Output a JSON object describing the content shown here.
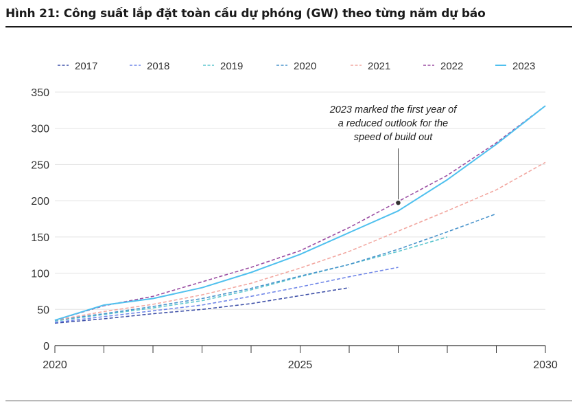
{
  "figure_title": "Hình 21: Công suất lắp đặt toàn cầu dự phóng (GW) theo từng năm dự báo",
  "chart_data": {
    "type": "line",
    "xlim": [
      2020,
      2030
    ],
    "ylim": [
      0,
      350
    ],
    "x_ticks": [
      2020,
      2025,
      2030
    ],
    "y_ticks": [
      0,
      50,
      100,
      150,
      200,
      250,
      300,
      350
    ],
    "grid": "horizontal",
    "legend_position": "top",
    "series": [
      {
        "name": "2017",
        "color": "#3f51a8",
        "dashed": true,
        "x": [
          2020,
          2021,
          2022,
          2023,
          2024,
          2025,
          2026
        ],
        "y": [
          31,
          37,
          44,
          50,
          58,
          69,
          80
        ]
      },
      {
        "name": "2018",
        "color": "#6f86e8",
        "dashed": true,
        "x": [
          2020,
          2021,
          2022,
          2023,
          2024,
          2025,
          2026,
          2027
        ],
        "y": [
          32,
          40,
          48,
          56,
          68,
          81,
          95,
          108
        ]
      },
      {
        "name": "2019",
        "color": "#5ec6cf",
        "dashed": true,
        "x": [
          2020,
          2021,
          2022,
          2023,
          2024,
          2025,
          2026,
          2027,
          2028
        ],
        "y": [
          34,
          43,
          52,
          62,
          77,
          95,
          112,
          130,
          150
        ]
      },
      {
        "name": "2020",
        "color": "#4a94cc",
        "dashed": true,
        "x": [
          2020,
          2021,
          2022,
          2023,
          2024,
          2025,
          2026,
          2027,
          2028,
          2029
        ],
        "y": [
          35,
          44,
          54,
          65,
          79,
          96,
          112,
          133,
          157,
          182
        ]
      },
      {
        "name": "2021",
        "color": "#f2a7a0",
        "dashed": true,
        "x": [
          2020,
          2021,
          2022,
          2023,
          2024,
          2025,
          2026,
          2027,
          2028,
          2029,
          2030
        ],
        "y": [
          35,
          47,
          57,
          70,
          86,
          107,
          130,
          158,
          186,
          215,
          253
        ]
      },
      {
        "name": "2022",
        "color": "#9b4fa3",
        "dashed": true,
        "x": [
          2020,
          2021,
          2022,
          2023,
          2024,
          2025,
          2026,
          2027,
          2028,
          2029,
          2030
        ],
        "y": [
          35,
          55,
          68,
          88,
          108,
          131,
          163,
          199,
          235,
          280,
          331
        ]
      },
      {
        "name": "2023",
        "color": "#4fc0ee",
        "dashed": false,
        "x": [
          2020,
          2021,
          2022,
          2023,
          2024,
          2025,
          2026,
          2027,
          2028,
          2029,
          2030
        ],
        "y": [
          35,
          56,
          65,
          80,
          101,
          126,
          156,
          186,
          229,
          278,
          331
        ]
      }
    ],
    "annotation": {
      "lines": [
        "2023 marked the first year of",
        "a reduced outlook for the",
        "speed of build out"
      ],
      "point": {
        "x": 2027,
        "y": 199
      }
    }
  }
}
